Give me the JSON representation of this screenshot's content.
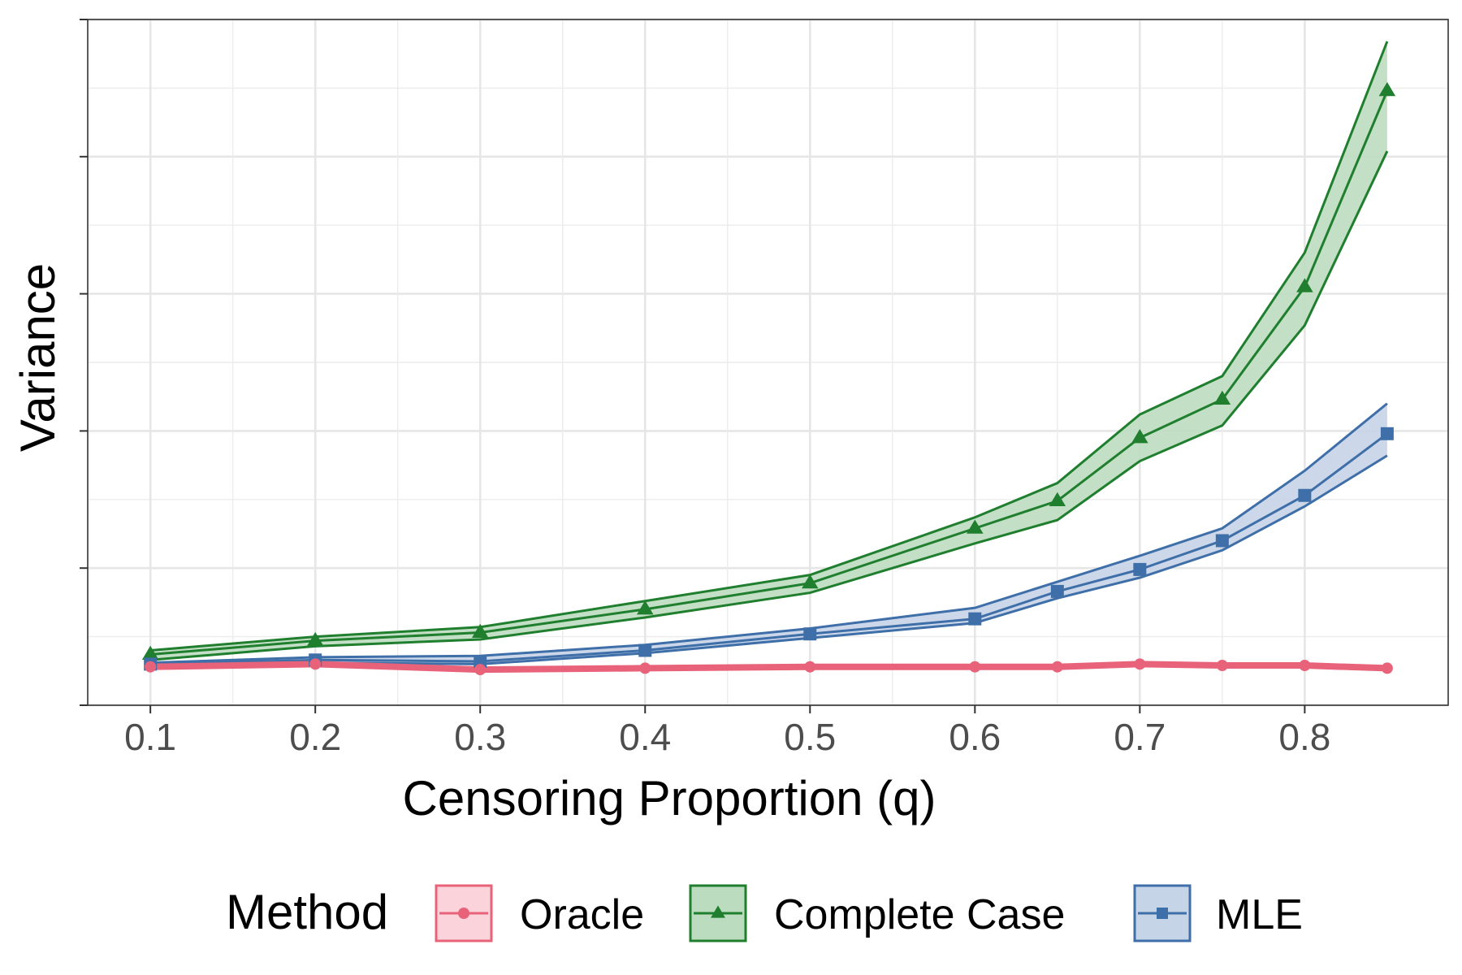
{
  "chart_data": {
    "type": "line",
    "title": "",
    "xlabel": "Censoring Proportion (q)",
    "ylabel": "Variance",
    "x": [
      0.1,
      0.2,
      0.3,
      0.4,
      0.5,
      0.6,
      0.65,
      0.7,
      0.75,
      0.8,
      0.85
    ],
    "x_ticks": [
      "0.1",
      "0.2",
      "0.3",
      "0.4",
      "0.5",
      "0.6",
      "0.7",
      "0.8"
    ],
    "x_tick_values": [
      0.1,
      0.2,
      0.3,
      0.4,
      0.5,
      0.6,
      0.7,
      0.8
    ],
    "xlim": [
      0.062,
      0.887
    ],
    "ylim": [
      0,
      5
    ],
    "y_tick_labels_shown": false,
    "grid": true,
    "legend": {
      "title": "Method",
      "position": "bottom"
    },
    "series": [
      {
        "name": "Oracle",
        "color": "#e8637a",
        "fill": "#fbd3da",
        "marker": "circle",
        "values": [
          0.28,
          0.3,
          0.26,
          0.27,
          0.28,
          0.28,
          0.28,
          0.3,
          0.29,
          0.29,
          0.27
        ],
        "lower": [
          0.28,
          0.3,
          0.26,
          0.27,
          0.28,
          0.28,
          0.28,
          0.3,
          0.29,
          0.29,
          0.27
        ],
        "upper": [
          0.28,
          0.3,
          0.26,
          0.27,
          0.28,
          0.28,
          0.28,
          0.3,
          0.29,
          0.29,
          0.27
        ]
      },
      {
        "name": "Complete Case",
        "color": "#1f7f2e",
        "fill": "#bcdcbf",
        "marker": "triangle",
        "values": [
          0.37,
          0.47,
          0.53,
          0.7,
          0.89,
          1.29,
          1.49,
          1.95,
          2.23,
          3.05,
          4.48
        ],
        "lower": [
          0.33,
          0.43,
          0.48,
          0.64,
          0.82,
          1.18,
          1.35,
          1.78,
          2.04,
          2.77,
          4.04
        ],
        "upper": [
          0.4,
          0.5,
          0.57,
          0.76,
          0.95,
          1.37,
          1.62,
          2.12,
          2.4,
          3.3,
          4.84
        ]
      },
      {
        "name": "MLE",
        "color": "#3f6fa8",
        "fill": "#c6d4e8",
        "marker": "square",
        "values": [
          0.3,
          0.33,
          0.32,
          0.4,
          0.52,
          0.63,
          0.83,
          0.99,
          1.2,
          1.53,
          1.98
        ],
        "lower": [
          0.28,
          0.31,
          0.3,
          0.38,
          0.49,
          0.6,
          0.78,
          0.93,
          1.13,
          1.45,
          1.82
        ],
        "upper": [
          0.31,
          0.35,
          0.36,
          0.44,
          0.56,
          0.71,
          0.9,
          1.09,
          1.29,
          1.71,
          2.2
        ]
      }
    ]
  }
}
